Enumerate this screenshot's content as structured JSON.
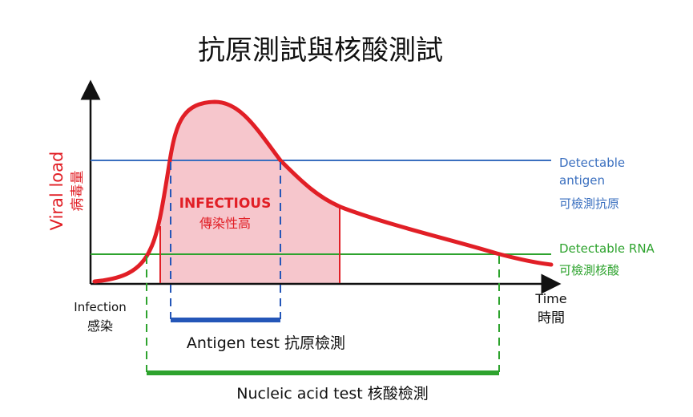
{
  "title": "抗原測試與核酸測試",
  "y_axis": {
    "label_en": "Viral load",
    "label_zh": "病毒量"
  },
  "x_axis": {
    "label_en": "Time",
    "label_zh": "時間"
  },
  "infection": {
    "label_en": "Infection",
    "label_zh": "感染"
  },
  "thresholds": {
    "antigen": {
      "line1": "Detectable",
      "line2": "antigen",
      "zh": "可檢測抗原",
      "color": "#3a6fbf"
    },
    "rna": {
      "line1": "Detectable RNA",
      "zh": "可檢測核酸",
      "color": "#2ea32e"
    }
  },
  "infectious": {
    "en": "INFECTIOUS",
    "zh": "傳染性高",
    "color": "#e11f26",
    "fill": "#f6c6cc"
  },
  "tests": {
    "antigen": {
      "label": "Antigen test 抗原檢測",
      "color": "#2456b8"
    },
    "nucleic": {
      "label": "Nucleic acid test  核酸檢測",
      "color": "#2ea32e"
    }
  }
}
